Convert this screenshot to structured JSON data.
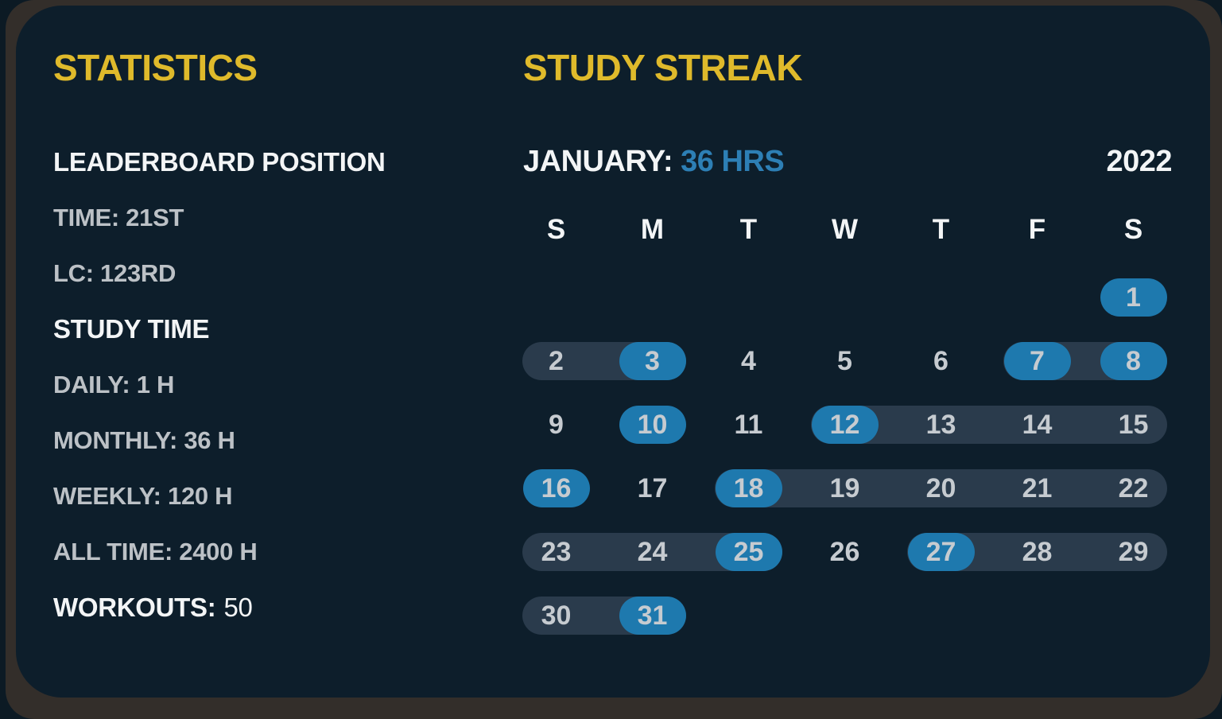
{
  "theme": {
    "page_bg": "#0c1a24",
    "frame_bg": "#332e2a",
    "card_bg": "#0d1e2b",
    "accent_yellow": "#dfba2b",
    "accent_blue": "#1e79ae",
    "accent_blue_text": "#2d7fb5",
    "streak_pill": "#2a3b4c",
    "text_primary": "#f3f5f6",
    "text_secondary": "#bcc1c6",
    "day_number": "#c6cbd0"
  },
  "statistics": {
    "title": "STATISTICS",
    "leaderboard": {
      "heading": "LEADERBOARD POSITION",
      "items": [
        "TIME: 21ST",
        "LC: 123RD"
      ]
    },
    "study_time": {
      "heading": "STUDY TIME",
      "items": [
        "DAILY: 1 H",
        "MONTHLY: 36 H",
        "WEEKLY: 120 H",
        "ALL TIME: 2400 H"
      ]
    },
    "workouts": {
      "label": "WORKOUTS:",
      "value": "50"
    }
  },
  "study_streak": {
    "title": "STUDY STREAK",
    "month_label": "JANUARY:",
    "hours_label": "36 HRS",
    "year": "2022",
    "weekday_headers": [
      "S",
      "M",
      "T",
      "W",
      "T",
      "F",
      "S"
    ],
    "calendar": {
      "weeks": [
        [
          null,
          null,
          null,
          null,
          null,
          null,
          {
            "day": 1,
            "studied": true
          }
        ],
        [
          {
            "day": 2,
            "span": "start"
          },
          {
            "day": 3,
            "studied": true,
            "span": "end"
          },
          {
            "day": 4
          },
          {
            "day": 5
          },
          {
            "day": 6
          },
          {
            "day": 7,
            "studied": true,
            "span": "start"
          },
          {
            "day": 8,
            "studied": true,
            "span": "end"
          }
        ],
        [
          {
            "day": 9
          },
          {
            "day": 10,
            "studied": true
          },
          {
            "day": 11
          },
          {
            "day": 12,
            "studied": true,
            "span": "start"
          },
          {
            "day": 13,
            "span": "mid"
          },
          {
            "day": 14,
            "span": "mid"
          },
          {
            "day": 15,
            "span": "end"
          }
        ],
        [
          {
            "day": 16,
            "studied": true
          },
          {
            "day": 17
          },
          {
            "day": 18,
            "studied": true,
            "span": "start"
          },
          {
            "day": 19,
            "span": "mid"
          },
          {
            "day": 20,
            "span": "mid"
          },
          {
            "day": 21,
            "span": "mid"
          },
          {
            "day": 22,
            "span": "end"
          }
        ],
        [
          {
            "day": 23,
            "span": "start"
          },
          {
            "day": 24,
            "span": "mid"
          },
          {
            "day": 25,
            "studied": true,
            "span": "end"
          },
          {
            "day": 26
          },
          {
            "day": 27,
            "studied": true,
            "span": "start"
          },
          {
            "day": 28,
            "span": "mid"
          },
          {
            "day": 29,
            "span": "end"
          }
        ],
        [
          {
            "day": 30,
            "span": "start"
          },
          {
            "day": 31,
            "studied": true,
            "span": "end"
          },
          null,
          null,
          null,
          null,
          null
        ]
      ]
    }
  }
}
